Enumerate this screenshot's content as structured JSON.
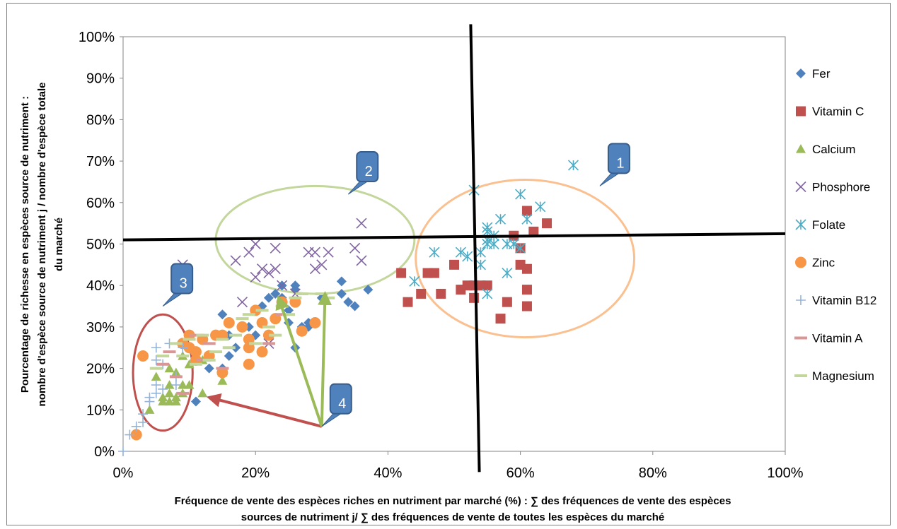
{
  "chart_data": {
    "type": "scatter",
    "title": "",
    "xlabel": [
      "Fréquence de vente des espèces riches en nutriment par marché (%) : ∑ des fréquences de vente des espèces",
      "sources de nutriment j/ ∑ des fréquences de vente de toutes les espèces du marché"
    ],
    "ylabel": [
      "Pourcentage de richesse en espèces source de nutriment :",
      "nombre d'espèce source de nutriment j / nombre d'espèce totale",
      "du marché"
    ],
    "xlim": [
      0,
      100
    ],
    "ylim": [
      0,
      100
    ],
    "x_ticks": [
      "0%",
      "20%",
      "40%",
      "60%",
      "80%",
      "100%"
    ],
    "y_ticks": [
      "0%",
      "10%",
      "20%",
      "30%",
      "40%",
      "50%",
      "60%",
      "70%",
      "80%",
      "90%",
      "100%"
    ],
    "grid": false,
    "legend_position": "right",
    "series": [
      {
        "name": "Fer",
        "marker": "diamond",
        "color": "#4f81bd",
        "points": [
          [
            11,
            12
          ],
          [
            14,
            28
          ],
          [
            15,
            33
          ],
          [
            16,
            28
          ],
          [
            16,
            23
          ],
          [
            17,
            25
          ],
          [
            19,
            30
          ],
          [
            20,
            28
          ],
          [
            21,
            35
          ],
          [
            22,
            37
          ],
          [
            23,
            38
          ],
          [
            24,
            40
          ],
          [
            24,
            37
          ],
          [
            25,
            34
          ],
          [
            25,
            31
          ],
          [
            26,
            40
          ],
          [
            26,
            39
          ],
          [
            26,
            25
          ],
          [
            27,
            30
          ],
          [
            28,
            31
          ],
          [
            28,
            30
          ],
          [
            29,
            31
          ],
          [
            30,
            37
          ],
          [
            33,
            41
          ],
          [
            33,
            38
          ],
          [
            34,
            36
          ],
          [
            35,
            35
          ],
          [
            37,
            39
          ],
          [
            15,
            20
          ],
          [
            13,
            20
          ]
        ]
      },
      {
        "name": "Vitamin C",
        "marker": "square",
        "color": "#c0504d",
        "points": [
          [
            42,
            43
          ],
          [
            43,
            36
          ],
          [
            45,
            38
          ],
          [
            46,
            43
          ],
          [
            47,
            43
          ],
          [
            48,
            38
          ],
          [
            50,
            45
          ],
          [
            51,
            39
          ],
          [
            52,
            40
          ],
          [
            53,
            37
          ],
          [
            53,
            40
          ],
          [
            54,
            40
          ],
          [
            55,
            40
          ],
          [
            57,
            32
          ],
          [
            58,
            36
          ],
          [
            59,
            52
          ],
          [
            60,
            49
          ],
          [
            60,
            45
          ],
          [
            61,
            44
          ],
          [
            61,
            58
          ],
          [
            61,
            35
          ],
          [
            61,
            39
          ],
          [
            62,
            53
          ],
          [
            64,
            55
          ]
        ]
      },
      {
        "name": "Calcium",
        "marker": "triangle",
        "color": "#9bbb59",
        "points": [
          [
            4,
            10
          ],
          [
            5,
            18
          ],
          [
            6,
            12
          ],
          [
            6,
            13
          ],
          [
            7,
            14
          ],
          [
            7,
            20
          ],
          [
            7,
            16
          ],
          [
            7,
            12
          ],
          [
            8,
            19
          ],
          [
            8,
            12
          ],
          [
            8,
            13
          ],
          [
            9,
            14
          ],
          [
            9,
            23
          ],
          [
            9,
            16
          ],
          [
            10,
            21
          ],
          [
            10,
            16
          ],
          [
            12,
            14
          ],
          [
            12,
            22
          ],
          [
            15,
            17
          ],
          [
            15,
            19
          ]
        ]
      },
      {
        "name": "Phosphore",
        "marker": "x",
        "color": "#8064a2",
        "points": [
          [
            9,
            45
          ],
          [
            17,
            46
          ],
          [
            18,
            36
          ],
          [
            19,
            48
          ],
          [
            20,
            42
          ],
          [
            20,
            50
          ],
          [
            21,
            44
          ],
          [
            22,
            43
          ],
          [
            22,
            26
          ],
          [
            23,
            44
          ],
          [
            23,
            49
          ],
          [
            24,
            40
          ],
          [
            26,
            38
          ],
          [
            28,
            48
          ],
          [
            29,
            44
          ],
          [
            29,
            48
          ],
          [
            30,
            45
          ],
          [
            31,
            48
          ],
          [
            35,
            49
          ],
          [
            36,
            46
          ],
          [
            36,
            55
          ]
        ]
      },
      {
        "name": "Folate",
        "marker": "asterisk",
        "color": "#4bacc6",
        "points": [
          [
            44,
            41
          ],
          [
            47,
            48
          ],
          [
            51,
            48
          ],
          [
            52,
            47
          ],
          [
            53,
            63
          ],
          [
            54,
            45
          ],
          [
            54,
            48
          ],
          [
            55,
            50
          ],
          [
            55,
            53
          ],
          [
            55,
            54
          ],
          [
            55,
            51
          ],
          [
            55,
            38
          ],
          [
            56,
            52
          ],
          [
            56,
            50
          ],
          [
            57,
            56
          ],
          [
            58,
            43
          ],
          [
            58,
            50
          ],
          [
            59,
            50
          ],
          [
            60,
            49
          ],
          [
            60,
            62
          ],
          [
            61,
            56
          ],
          [
            63,
            59
          ],
          [
            68,
            69
          ]
        ]
      },
      {
        "name": "Zinc",
        "marker": "circle",
        "color": "#f79646",
        "points": [
          [
            2,
            4
          ],
          [
            3,
            23
          ],
          [
            9,
            26
          ],
          [
            10,
            28
          ],
          [
            10,
            25
          ],
          [
            11,
            24
          ],
          [
            11,
            22
          ],
          [
            12,
            27
          ],
          [
            13,
            23
          ],
          [
            14,
            28
          ],
          [
            15,
            28
          ],
          [
            15,
            19
          ],
          [
            16,
            31
          ],
          [
            18,
            30
          ],
          [
            19,
            21
          ],
          [
            19,
            27
          ],
          [
            19,
            25
          ],
          [
            20,
            34
          ],
          [
            21,
            24
          ],
          [
            21,
            31
          ],
          [
            22,
            28
          ],
          [
            23,
            32
          ],
          [
            24,
            36
          ],
          [
            26,
            36
          ],
          [
            27,
            29
          ],
          [
            29,
            31
          ]
        ]
      },
      {
        "name": "Vitamin B12",
        "marker": "plus",
        "color": "#95b3d7",
        "points": [
          [
            0,
            0
          ],
          [
            1,
            4
          ],
          [
            2,
            6
          ],
          [
            3,
            7
          ],
          [
            3,
            9
          ],
          [
            4,
            13
          ],
          [
            4,
            12
          ],
          [
            5,
            16
          ],
          [
            5,
            14
          ],
          [
            5,
            22
          ],
          [
            5,
            25
          ],
          [
            6,
            21
          ],
          [
            6,
            15
          ],
          [
            7,
            26
          ],
          [
            8,
            18
          ],
          [
            8,
            16
          ],
          [
            9,
            25
          ]
        ]
      },
      {
        "name": "Vitamin A",
        "marker": "dash",
        "color": "#d99694",
        "points": [
          [
            6,
            21
          ],
          [
            7,
            24
          ],
          [
            8,
            18
          ],
          [
            9,
            14
          ],
          [
            11,
            28
          ],
          [
            12,
            22
          ],
          [
            13,
            26
          ],
          [
            15,
            20
          ],
          [
            22,
            26
          ],
          [
            24,
            33
          ]
        ]
      },
      {
        "name": "Magnesium",
        "marker": "dash",
        "color": "#c3d69b",
        "points": [
          [
            5,
            20
          ],
          [
            6,
            23
          ],
          [
            8,
            26
          ],
          [
            9,
            23
          ],
          [
            10,
            27
          ],
          [
            11,
            21
          ],
          [
            12,
            28
          ],
          [
            13,
            22
          ],
          [
            14,
            24
          ],
          [
            15,
            27
          ],
          [
            16,
            25
          ],
          [
            17,
            28
          ],
          [
            18,
            32
          ],
          [
            19,
            33
          ],
          [
            20,
            26
          ],
          [
            21,
            34
          ],
          [
            22,
            30
          ],
          [
            23,
            28
          ],
          [
            24,
            35
          ],
          [
            25,
            33
          ],
          [
            26,
            37
          ],
          [
            27,
            38
          ],
          [
            30,
            38
          ],
          [
            31,
            37
          ]
        ]
      }
    ],
    "annotations": {
      "callouts": [
        {
          "label": "1",
          "anchor": [
            72,
            64
          ]
        },
        {
          "label": "2",
          "anchor": [
            34,
            62
          ]
        },
        {
          "label": "3",
          "anchor": [
            6,
            35
          ]
        },
        {
          "label": "4",
          "anchor": [
            30,
            6
          ]
        }
      ],
      "reference_lines": [
        {
          "from": [
            0,
            51
          ],
          "to": [
            100,
            52.5
          ],
          "color": "#000000"
        },
        {
          "from": [
            52.5,
            103
          ],
          "to": [
            53.8,
            -5
          ],
          "color": "#000000"
        }
      ],
      "ellipses": [
        {
          "label": "1",
          "center": [
            60.7,
            46.5
          ],
          "rx": 16.5,
          "ry": 19,
          "color": "#fac090"
        },
        {
          "label": "2",
          "center": [
            29,
            51
          ],
          "rx": 15,
          "ry": 13,
          "color": "#c3d69b"
        },
        {
          "label": "3",
          "center": [
            6,
            19
          ],
          "rx": 4.5,
          "ry": 14,
          "color": "#c0504d"
        }
      ],
      "arrows": [
        {
          "from": [
            30,
            6
          ],
          "to": [
            13,
            13
          ],
          "color": "#c0504d"
        },
        {
          "from": [
            30,
            6
          ],
          "to": [
            23.5,
            37
          ],
          "color": "#9bbb59"
        },
        {
          "from": [
            30,
            6
          ],
          "to": [
            30.5,
            38
          ],
          "color": "#9bbb59"
        }
      ]
    }
  }
}
